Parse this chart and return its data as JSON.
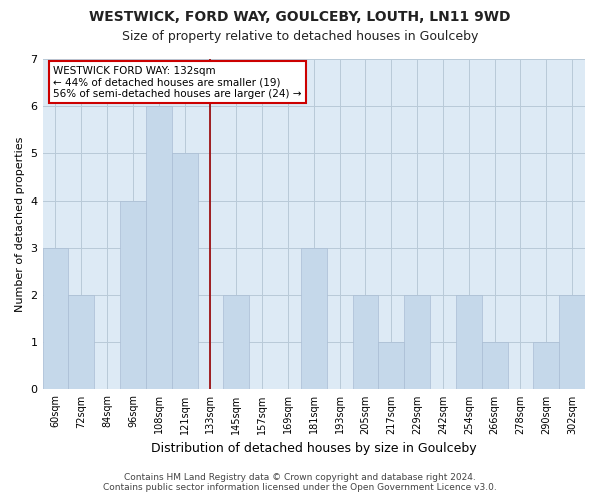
{
  "title": "WESTWICK, FORD WAY, GOULCEBY, LOUTH, LN11 9WD",
  "subtitle": "Size of property relative to detached houses in Goulceby",
  "xlabel": "Distribution of detached houses by size in Goulceby",
  "ylabel": "Number of detached properties",
  "categories": [
    "60sqm",
    "72sqm",
    "84sqm",
    "96sqm",
    "108sqm",
    "121sqm",
    "133sqm",
    "145sqm",
    "157sqm",
    "169sqm",
    "181sqm",
    "193sqm",
    "205sqm",
    "217sqm",
    "229sqm",
    "242sqm",
    "254sqm",
    "266sqm",
    "278sqm",
    "290sqm",
    "302sqm"
  ],
  "values": [
    3,
    2,
    0,
    4,
    6,
    5,
    0,
    2,
    0,
    0,
    3,
    0,
    2,
    1,
    2,
    0,
    2,
    1,
    0,
    1,
    2
  ],
  "highlight_index": 6,
  "bar_color": "#c5d8ea",
  "bar_edge_color": "#aabdd4",
  "highlight_line_color": "#990000",
  "ylim": [
    0,
    7
  ],
  "yticks": [
    0,
    1,
    2,
    3,
    4,
    5,
    6,
    7
  ],
  "annotation_title": "WESTWICK FORD WAY: 132sqm",
  "annotation_line1": "← 44% of detached houses are smaller (19)",
  "annotation_line2": "56% of semi-detached houses are larger (24) →",
  "annotation_box_color": "#ffffff",
  "annotation_box_edge": "#cc0000",
  "footer_line1": "Contains HM Land Registry data © Crown copyright and database right 2024.",
  "footer_line2": "Contains public sector information licensed under the Open Government Licence v3.0.",
  "bg_color": "#ffffff",
  "plot_bg_color": "#ddeaf5",
  "grid_color": "#b8cad8",
  "title_fontsize": 10,
  "subtitle_fontsize": 9
}
